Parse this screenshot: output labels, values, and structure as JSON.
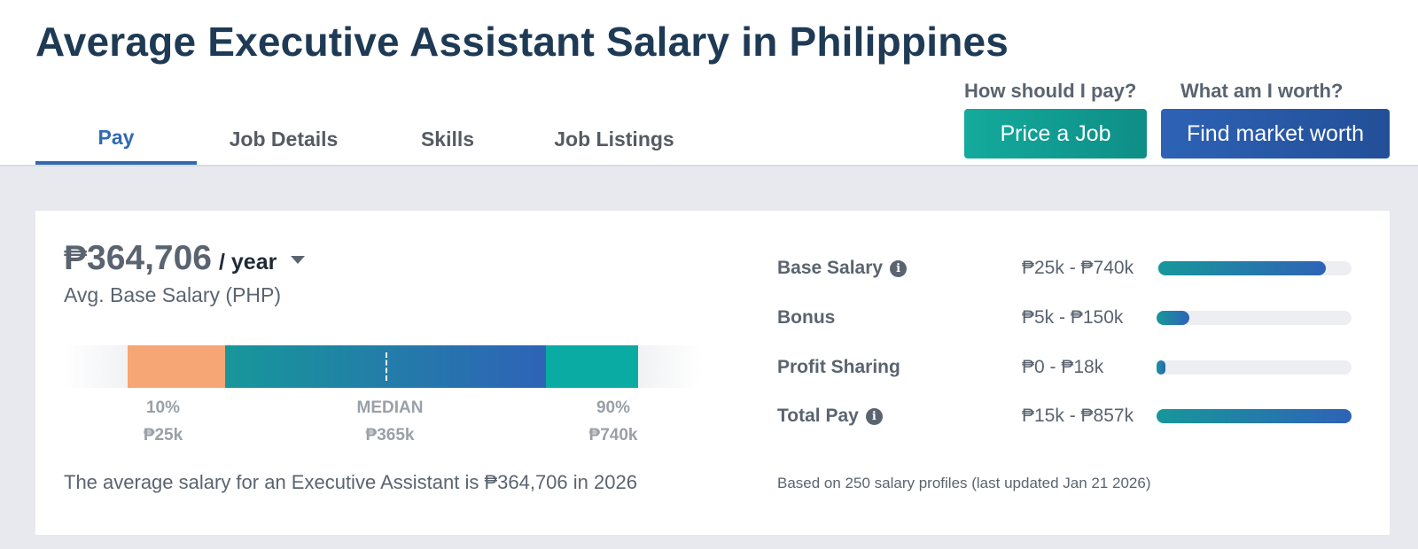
{
  "header": {
    "title": "Average Executive Assistant Salary in Philippines",
    "tabs": [
      {
        "label": "Pay",
        "active": true
      },
      {
        "label": "Job Details",
        "active": false
      },
      {
        "label": "Skills",
        "active": false
      },
      {
        "label": "Job Listings",
        "active": false
      }
    ],
    "cta": {
      "price_question": "How should I pay?",
      "price_button": "Price a Job",
      "worth_question": "What am I worth?",
      "worth_button": "Find market worth"
    }
  },
  "salary": {
    "amount": "₱364,706",
    "period": "/ year",
    "caption": "Avg. Base Salary (PHP)",
    "distribution": {
      "p10_label": "10%",
      "p10_value": "₱25k",
      "median_label": "MEDIAN",
      "median_value": "₱365k",
      "p90_label": "90%",
      "p90_value": "₱740k"
    },
    "summary": "The average salary for an Executive Assistant is ₱364,706 in 2026"
  },
  "compensation": {
    "items": [
      {
        "label": "Base Salary",
        "range": "₱25k - ₱740k",
        "start": 0.01,
        "end": 0.87,
        "info": true
      },
      {
        "label": "Bonus",
        "range": "₱5k - ₱150k",
        "start": 0.0,
        "end": 0.17,
        "info": false
      },
      {
        "label": "Profit Sharing",
        "range": "₱0 - ₱18k",
        "start": 0.0,
        "end": 0.03,
        "info": false
      },
      {
        "label": "Total Pay",
        "range": "₱15k - ₱857k",
        "start": 0.0,
        "end": 1.0,
        "info": true
      }
    ],
    "footnote": "Based on 250 salary profiles (last updated Jan 21 2026)"
  },
  "colors": {
    "title": "#1e3a55",
    "active_tab": "#2f6ab3",
    "price_button": "#13aa9c",
    "worth_button": "#2d62b5",
    "percentile_low": "#f6a674",
    "percentile_high": "#0aaba3"
  },
  "icons": {
    "info": "info-icon",
    "dropdown": "caret-down-icon"
  }
}
